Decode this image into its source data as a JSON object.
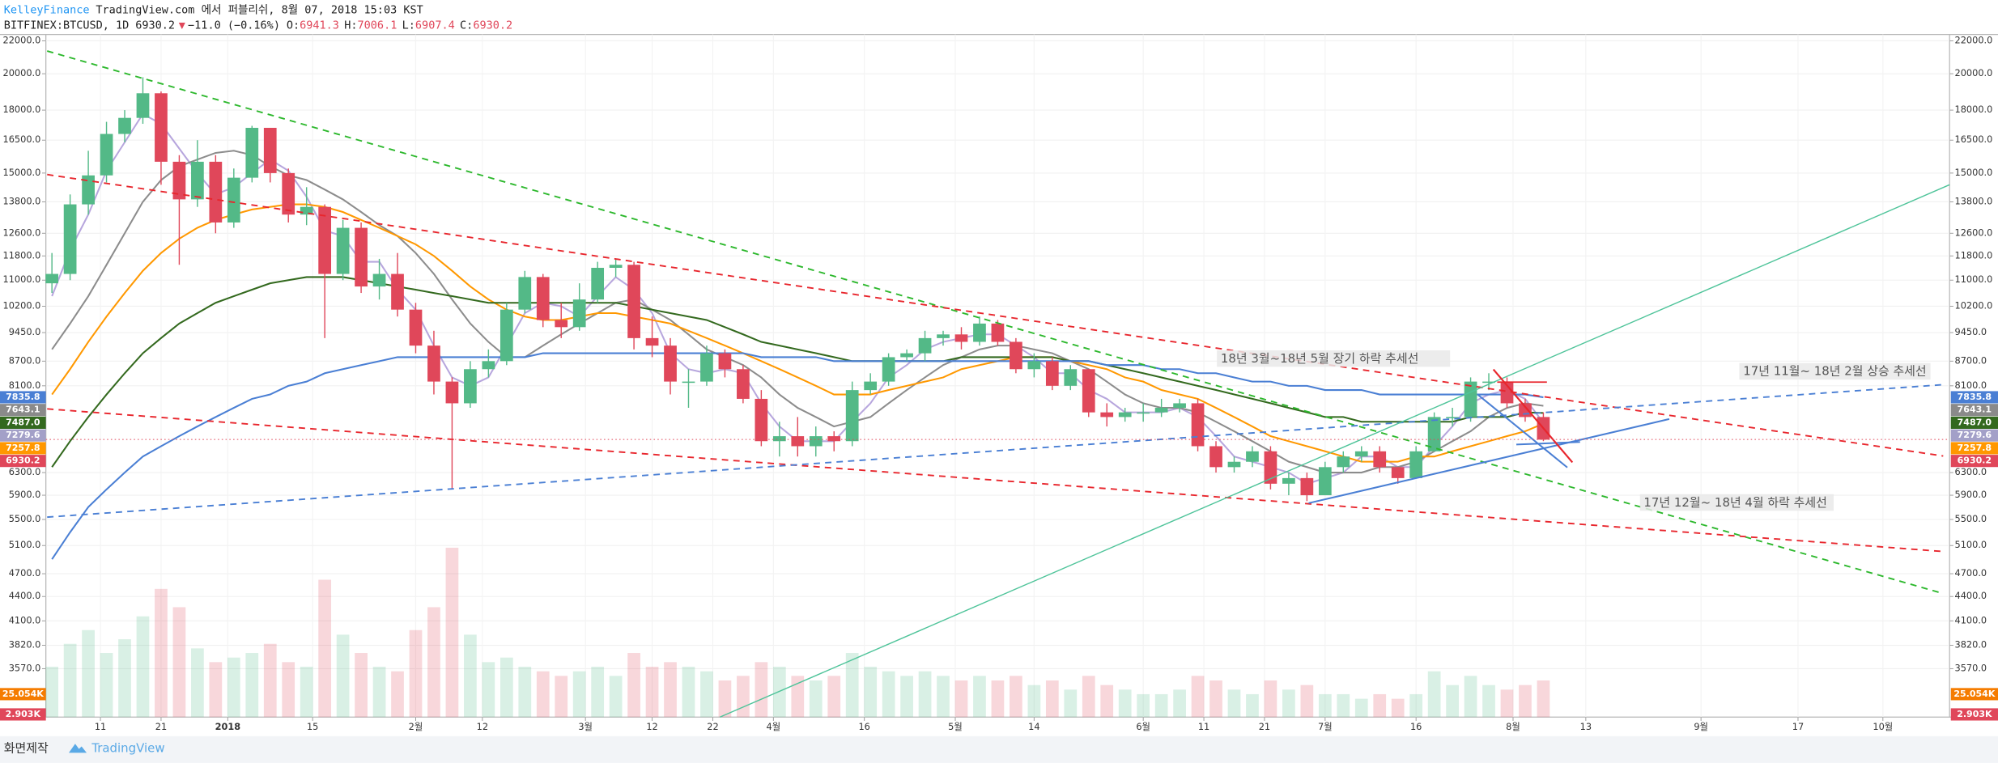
{
  "chart_data": {
    "type": "candlestick",
    "header": {
      "publisher": "KelleyFinance",
      "published": "TradingView.com 에서 퍼블리쉬, 8월 07, 2018 15:03 KST",
      "symbol": "BITFINEX:BTCUSD, 1D",
      "last": "6930.2",
      "arrow": "▼",
      "change": "−11.0 (−0.16%)",
      "ohlc": [
        {
          "key": "O:",
          "value": "6941.3"
        },
        {
          "key": "H:",
          "value": "7006.1"
        },
        {
          "key": "L:",
          "value": "6907.4"
        },
        {
          "key": "C:",
          "value": "6930.2"
        }
      ]
    },
    "footer": {
      "caption": "화면제작",
      "brand": "TradingView"
    },
    "log_scale": true,
    "grid": true,
    "up_color": "#53b987",
    "down_color": "#e0475a",
    "xlim": [
      "2017-12-02",
      "2018-10-12"
    ],
    "ylim": [
      3103,
      22410
    ],
    "volume_ylim": [
      0,
      185
    ],
    "xticks": [
      {
        "value": "2017-12-11",
        "label": "11"
      },
      {
        "value": "2017-12-21",
        "label": "21"
      },
      {
        "value": "2018-01-01",
        "label": "2018"
      },
      {
        "value": "2018-01-15",
        "label": "15"
      },
      {
        "value": "2018-02-01",
        "label": "2월"
      },
      {
        "value": "2018-02-12",
        "label": "12"
      },
      {
        "value": "2018-03-01",
        "label": "3월"
      },
      {
        "value": "2018-03-12",
        "label": "12"
      },
      {
        "value": "2018-03-22",
        "label": "22"
      },
      {
        "value": "2018-04-01",
        "label": "4월"
      },
      {
        "value": "2018-04-16",
        "label": "16"
      },
      {
        "value": "2018-05-01",
        "label": "5월"
      },
      {
        "value": "2018-05-14",
        "label": "14"
      },
      {
        "value": "2018-06-01",
        "label": "6월"
      },
      {
        "value": "2018-06-11",
        "label": "11"
      },
      {
        "value": "2018-06-21",
        "label": "21"
      },
      {
        "value": "2018-07-01",
        "label": "7월"
      },
      {
        "value": "2018-07-16",
        "label": "16"
      },
      {
        "value": "2018-08-01",
        "label": "8월"
      },
      {
        "value": "2018-08-13",
        "label": "13"
      },
      {
        "value": "2018-09-01",
        "label": "9월"
      },
      {
        "value": "2018-09-17",
        "label": "17"
      },
      {
        "value": "2018-10-01",
        "label": "10월"
      }
    ],
    "yticks": [
      {
        "value": 22000,
        "label": "22000.0"
      },
      {
        "value": 20000,
        "label": "20000.0"
      },
      {
        "value": 18000,
        "label": "18000.0"
      },
      {
        "value": 16500,
        "label": "16500.0"
      },
      {
        "value": 15000,
        "label": "15000.0"
      },
      {
        "value": 13800,
        "label": "13800.0"
      },
      {
        "value": 12600,
        "label": "12600.0"
      },
      {
        "value": 11800,
        "label": "11800.0"
      },
      {
        "value": 11000,
        "label": "11000.0"
      },
      {
        "value": 10200,
        "label": "10200.0"
      },
      {
        "value": 9450,
        "label": "9450.0"
      },
      {
        "value": 8700,
        "label": "8700.0"
      },
      {
        "value": 8100,
        "label": "8100.0"
      },
      {
        "value": 6300,
        "label": "6300.0"
      },
      {
        "value": 5900,
        "label": "5900.0"
      },
      {
        "value": 5500,
        "label": "5500.0"
      },
      {
        "value": 5100,
        "label": "5100.0"
      },
      {
        "value": 4700,
        "label": "4700.0"
      },
      {
        "value": 4400,
        "label": "4400.0"
      },
      {
        "value": 4100,
        "label": "4100.0"
      },
      {
        "value": 3820,
        "label": "3820.0"
      },
      {
        "value": 3570,
        "label": "3570.0"
      }
    ],
    "price_tags": [
      {
        "value": 7835.8,
        "label": "7835.8",
        "color": "#4a7fd4"
      },
      {
        "value": 7643.1,
        "label": "7643.1",
        "color": "#8a8a8a"
      },
      {
        "value": 7487.0,
        "label": "7487.0",
        "color": "#33691e"
      },
      {
        "value": 7279.6,
        "label": "7279.6",
        "color": "#a3a0c8"
      },
      {
        "value": 7257.8,
        "label": "7257.8",
        "color": "#ff9800"
      },
      {
        "value": 6930.2,
        "label": "6930.2",
        "color": "#e0475a"
      }
    ],
    "volume_tags": [
      {
        "value": 25.054,
        "label": "25.054K",
        "color": "#f57c00"
      },
      {
        "value": 2.903,
        "label": "2.903K",
        "color": "#e0475a"
      }
    ],
    "annotations": [
      {
        "text": "18년 3월~18년 5월 장기 하락 추세선"
      },
      {
        "text": "17년 11월~ 18년 2월 상승 추세선"
      },
      {
        "text": "17년 12월~ 18년 4월 하락 추세선"
      }
    ],
    "x": [
      "2017-12-03",
      "2017-12-06",
      "2017-12-09",
      "2017-12-12",
      "2017-12-15",
      "2017-12-18",
      "2017-12-21",
      "2017-12-24",
      "2017-12-27",
      "2017-12-30",
      "2018-01-02",
      "2018-01-05",
      "2018-01-08",
      "2018-01-11",
      "2018-01-14",
      "2018-01-17",
      "2018-01-20",
      "2018-01-23",
      "2018-01-26",
      "2018-01-29",
      "2018-02-01",
      "2018-02-04",
      "2018-02-07",
      "2018-02-10",
      "2018-02-13",
      "2018-02-16",
      "2018-02-19",
      "2018-02-22",
      "2018-02-25",
      "2018-02-28",
      "2018-03-03",
      "2018-03-06",
      "2018-03-09",
      "2018-03-12",
      "2018-03-15",
      "2018-03-18",
      "2018-03-21",
      "2018-03-24",
      "2018-03-27",
      "2018-03-30",
      "2018-04-02",
      "2018-04-05",
      "2018-04-08",
      "2018-04-11",
      "2018-04-14",
      "2018-04-17",
      "2018-04-20",
      "2018-04-23",
      "2018-04-26",
      "2018-04-29",
      "2018-05-02",
      "2018-05-05",
      "2018-05-08",
      "2018-05-11",
      "2018-05-14",
      "2018-05-17",
      "2018-05-20",
      "2018-05-23",
      "2018-05-26",
      "2018-05-29",
      "2018-06-01",
      "2018-06-04",
      "2018-06-07",
      "2018-06-10",
      "2018-06-13",
      "2018-06-16",
      "2018-06-19",
      "2018-06-22",
      "2018-06-25",
      "2018-06-28",
      "2018-07-01",
      "2018-07-04",
      "2018-07-07",
      "2018-07-10",
      "2018-07-13",
      "2018-07-16",
      "2018-07-19",
      "2018-07-22",
      "2018-07-25",
      "2018-07-28",
      "2018-07-31",
      "2018-08-03",
      "2018-08-06"
    ],
    "open": [
      10900,
      11200,
      13700,
      14900,
      16800,
      17600,
      18900,
      15500,
      13900,
      15500,
      13000,
      14800,
      17100,
      15000,
      13300,
      13600,
      11200,
      12800,
      10800,
      11200,
      10100,
      9100,
      8200,
      7700,
      8500,
      8700,
      10100,
      11100,
      9800,
      9600,
      10400,
      11400,
      11500,
      9300,
      9100,
      8200,
      8200,
      8900,
      8500,
      7800,
      6900,
      7000,
      6800,
      7000,
      6900,
      8000,
      8200,
      8800,
      8900,
      9300,
      9400,
      9200,
      9700,
      9200,
      8500,
      8700,
      8100,
      8500,
      7500,
      7400,
      7500,
      7500,
      7600,
      7700,
      6800,
      6400,
      6500,
      6700,
      6100,
      6200,
      5900,
      6400,
      6600,
      6700,
      6400,
      6200,
      6700,
      7400,
      7400,
      8200,
      8200,
      7700,
      7400
    ],
    "high": [
      11900,
      14100,
      16000,
      17400,
      18000,
      19800,
      19000,
      15800,
      16500,
      15800,
      15200,
      17200,
      17100,
      15200,
      14400,
      13700,
      13100,
      13000,
      11700,
      11900,
      10300,
      9500,
      8300,
      8700,
      9000,
      10300,
      11300,
      11200,
      10300,
      10900,
      11600,
      11700,
      11600,
      9900,
      9300,
      8500,
      9100,
      9000,
      8600,
      8000,
      7300,
      7400,
      7200,
      7100,
      8200,
      8400,
      8900,
      9000,
      9500,
      9500,
      9600,
      9900,
      9800,
      9300,
      8900,
      8800,
      8600,
      8500,
      7700,
      7600,
      7700,
      7800,
      7800,
      7800,
      6900,
      6600,
      6800,
      6800,
      6300,
      6300,
      6500,
      6700,
      6800,
      6800,
      6400,
      6800,
      7500,
      7600,
      8300,
      8400,
      8300,
      7800,
      7500
    ],
    "low": [
      10600,
      11000,
      13300,
      14600,
      16400,
      17300,
      14500,
      11500,
      13600,
      12600,
      12800,
      14600,
      14600,
      13000,
      12900,
      9300,
      11000,
      10600,
      10400,
      9900,
      8900,
      7900,
      6000,
      7600,
      8300,
      8600,
      10000,
      9600,
      9300,
      9500,
      10300,
      11100,
      9000,
      8800,
      7900,
      7600,
      8100,
      8300,
      7700,
      6800,
      6600,
      6600,
      6600,
      6700,
      6800,
      7900,
      8100,
      8700,
      8700,
      9100,
      9000,
      9100,
      9100,
      8400,
      8300,
      8000,
      8000,
      7400,
      7200,
      7300,
      7300,
      7400,
      7500,
      6700,
      6300,
      6300,
      6400,
      6000,
      5900,
      5800,
      5900,
      6300,
      6500,
      6300,
      6100,
      6200,
      6700,
      7200,
      7300,
      8000,
      7600,
      7300,
      6900
    ],
    "close": [
      11200,
      13700,
      14900,
      16800,
      17600,
      18900,
      15500,
      13900,
      15500,
      13000,
      14800,
      17100,
      15000,
      13300,
      13600,
      11200,
      12800,
      10800,
      11200,
      10100,
      9100,
      8200,
      7700,
      8500,
      8700,
      10100,
      11100,
      9800,
      9600,
      10400,
      11400,
      11500,
      9300,
      9100,
      8200,
      8200,
      8900,
      8500,
      7800,
      6900,
      7000,
      6800,
      7000,
      6900,
      8000,
      8200,
      8800,
      8900,
      9300,
      9400,
      9200,
      9700,
      9200,
      8500,
      8700,
      8100,
      8500,
      7500,
      7400,
      7500,
      7500,
      7600,
      7700,
      6800,
      6400,
      6500,
      6700,
      6100,
      6200,
      5900,
      6400,
      6600,
      6700,
      6400,
      6200,
      6700,
      7400,
      7400,
      8200,
      8200,
      7700,
      7400,
      6930
    ],
    "volume": [
      55,
      80,
      95,
      70,
      85,
      110,
      140,
      120,
      75,
      60,
      65,
      70,
      80,
      60,
      55,
      150,
      90,
      70,
      55,
      50,
      95,
      120,
      185,
      90,
      60,
      65,
      55,
      50,
      45,
      50,
      55,
      45,
      70,
      55,
      60,
      55,
      50,
      40,
      45,
      60,
      55,
      45,
      40,
      45,
      70,
      55,
      50,
      45,
      50,
      45,
      40,
      45,
      40,
      45,
      35,
      40,
      30,
      45,
      35,
      30,
      25,
      25,
      30,
      45,
      40,
      30,
      25,
      40,
      30,
      35,
      25,
      25,
      20,
      25,
      20,
      25,
      50,
      35,
      45,
      35,
      30,
      35,
      40
    ],
    "series": [
      {
        "color": "#b7a6dd",
        "values": [
          10500,
          12000,
          13300,
          15100,
          16400,
          17800,
          17300,
          16100,
          15000,
          14100,
          14400,
          15000,
          15600,
          15100,
          14000,
          12700,
          12500,
          11600,
          11600,
          10700,
          10100,
          9100,
          8300,
          8100,
          8300,
          9100,
          10000,
          10300,
          10200,
          9900,
          10500,
          11100,
          10700,
          10000,
          8900,
          8500,
          8400,
          8500,
          8400,
          7700,
          7200,
          6900,
          6900,
          6900,
          7300,
          7700,
          8300,
          8600,
          9000,
          9200,
          9300,
          9400,
          9400,
          9100,
          8800,
          8400,
          8400,
          8000,
          7800,
          7500,
          7500,
          7500,
          7600,
          7400,
          7000,
          6600,
          6500,
          6400,
          6300,
          6100,
          6200,
          6300,
          6600,
          6600,
          6400,
          6400,
          6800,
          7200,
          7700,
          7900,
          8000,
          7800,
          7280
        ]
      },
      {
        "color": "#8c8c8c",
        "values": [
          9000,
          9700,
          10500,
          11500,
          12600,
          13800,
          14700,
          15300,
          15600,
          15900,
          16000,
          15800,
          15300,
          14900,
          14700,
          14300,
          13900,
          13400,
          12900,
          12500,
          11900,
          11200,
          10400,
          9700,
          9200,
          8800,
          8800,
          9100,
          9400,
          9700,
          10000,
          10300,
          10400,
          10100,
          9800,
          9400,
          9000,
          8800,
          8600,
          8300,
          7900,
          7600,
          7400,
          7200,
          7300,
          7400,
          7700,
          8000,
          8300,
          8600,
          8800,
          9000,
          9100,
          9100,
          9000,
          8900,
          8700,
          8500,
          8200,
          7900,
          7700,
          7600,
          7600,
          7500,
          7300,
          7100,
          6900,
          6700,
          6500,
          6400,
          6300,
          6300,
          6300,
          6400,
          6400,
          6500,
          6700,
          6900,
          7100,
          7400,
          7600,
          7700,
          7643
        ]
      },
      {
        "color": "#ff9800",
        "values": [
          7900,
          8500,
          9200,
          9900,
          10600,
          11300,
          11900,
          12400,
          12800,
          13100,
          13300,
          13500,
          13600,
          13700,
          13700,
          13600,
          13400,
          13100,
          12800,
          12500,
          12200,
          11800,
          11300,
          10800,
          10400,
          10100,
          9900,
          9800,
          9800,
          9900,
          10000,
          10000,
          9900,
          9800,
          9700,
          9500,
          9300,
          9100,
          8900,
          8700,
          8500,
          8300,
          8100,
          7900,
          7900,
          7900,
          8000,
          8100,
          8200,
          8300,
          8500,
          8600,
          8700,
          8800,
          8800,
          8800,
          8700,
          8600,
          8500,
          8300,
          8200,
          8000,
          7900,
          7800,
          7600,
          7400,
          7200,
          7000,
          6900,
          6800,
          6700,
          6600,
          6500,
          6500,
          6500,
          6600,
          6600,
          6700,
          6800,
          6900,
          7000,
          7100,
          7258
        ]
      },
      {
        "color": "#33691e",
        "values": [
          6400,
          6900,
          7400,
          7900,
          8400,
          8900,
          9300,
          9700,
          10000,
          10300,
          10500,
          10700,
          10900,
          11000,
          11100,
          11100,
          11100,
          11000,
          10900,
          10800,
          10700,
          10600,
          10500,
          10400,
          10300,
          10300,
          10300,
          10300,
          10300,
          10300,
          10300,
          10300,
          10200,
          10100,
          10000,
          9900,
          9800,
          9600,
          9400,
          9200,
          9100,
          9000,
          8900,
          8800,
          8700,
          8700,
          8700,
          8700,
          8700,
          8700,
          8800,
          8800,
          8800,
          8800,
          8800,
          8800,
          8700,
          8700,
          8600,
          8500,
          8400,
          8300,
          8200,
          8100,
          8000,
          7900,
          7800,
          7700,
          7600,
          7500,
          7400,
          7400,
          7300,
          7300,
          7300,
          7300,
          7300,
          7300,
          7400,
          7400,
          7400,
          7500,
          7487
        ]
      },
      {
        "color": "#4a7fd4",
        "values": [
          4900,
          5300,
          5700,
          6000,
          6300,
          6600,
          6800,
          7000,
          7200,
          7400,
          7600,
          7800,
          7900,
          8100,
          8200,
          8400,
          8500,
          8600,
          8700,
          8800,
          8800,
          8800,
          8800,
          8800,
          8800,
          8800,
          8800,
          8900,
          8900,
          8900,
          8900,
          8900,
          8900,
          8900,
          8900,
          8900,
          8900,
          8900,
          8900,
          8800,
          8800,
          8800,
          8800,
          8700,
          8700,
          8700,
          8700,
          8700,
          8700,
          8700,
          8700,
          8700,
          8700,
          8700,
          8700,
          8700,
          8700,
          8700,
          8600,
          8600,
          8600,
          8500,
          8500,
          8400,
          8400,
          8300,
          8200,
          8200,
          8100,
          8100,
          8000,
          8000,
          8000,
          7900,
          7900,
          7900,
          7900,
          7900,
          7900,
          7900,
          7900,
          7900,
          7836
        ]
      }
    ]
  }
}
